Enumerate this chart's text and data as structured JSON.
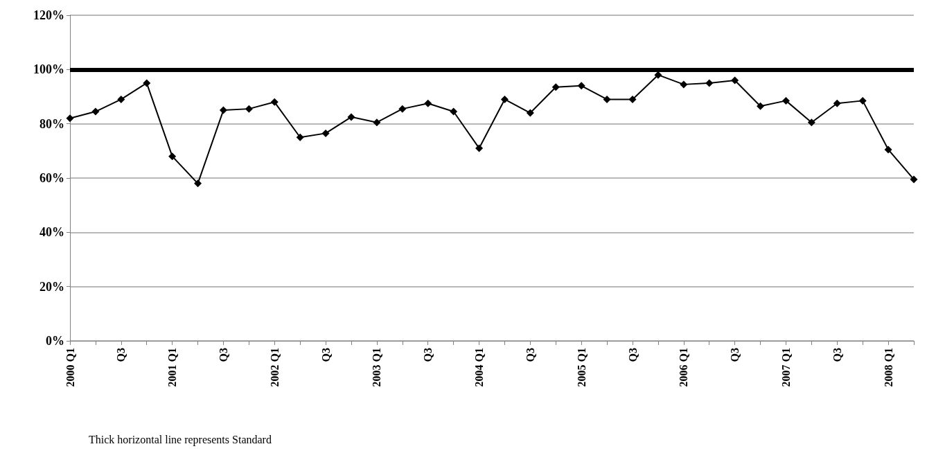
{
  "chart_data": {
    "type": "line",
    "categories": [
      "2000 Q1",
      null,
      "Q3",
      null,
      "2001 Q1",
      null,
      "Q3",
      null,
      "2002 Q1",
      null,
      "Q3",
      null,
      "2003 Q1",
      null,
      "Q3",
      null,
      "2004 Q1",
      null,
      "Q3",
      null,
      "2005 Q1",
      null,
      "Q3",
      null,
      "2006 Q1",
      null,
      "Q3",
      null,
      "2007 Q1",
      null,
      "Q3",
      null,
      "2008 Q1",
      null
    ],
    "series": [
      {
        "color": "#000000",
        "values": [
          82,
          84.5,
          89,
          95,
          68,
          58,
          85,
          85.5,
          88,
          75,
          76.5,
          82.5,
          80.5,
          85.5,
          87.5,
          84.5,
          71,
          89,
          84,
          93.5,
          94,
          89,
          89,
          98,
          94.5,
          95,
          96,
          86.5,
          88.5,
          80.5,
          87.5,
          88.5,
          70.5,
          59.5
        ]
      }
    ],
    "ylim": [
      0,
      120
    ],
    "yticks": [
      {
        "value": 0,
        "label": "0%"
      },
      {
        "value": 20,
        "label": "20%"
      },
      {
        "value": 40,
        "label": "40%"
      },
      {
        "value": 60,
        "label": "60%"
      },
      {
        "value": 80,
        "label": "80%"
      },
      {
        "value": 100,
        "label": "100%"
      },
      {
        "value": 120,
        "label": "120%"
      }
    ],
    "ref_lines": [
      {
        "axis": "y",
        "value": 100,
        "color": "#000000"
      }
    ],
    "annotations": [
      "Thick horizontal line represents Standard"
    ],
    "grid": "y",
    "marker": "diamond",
    "line_style": "solid"
  }
}
